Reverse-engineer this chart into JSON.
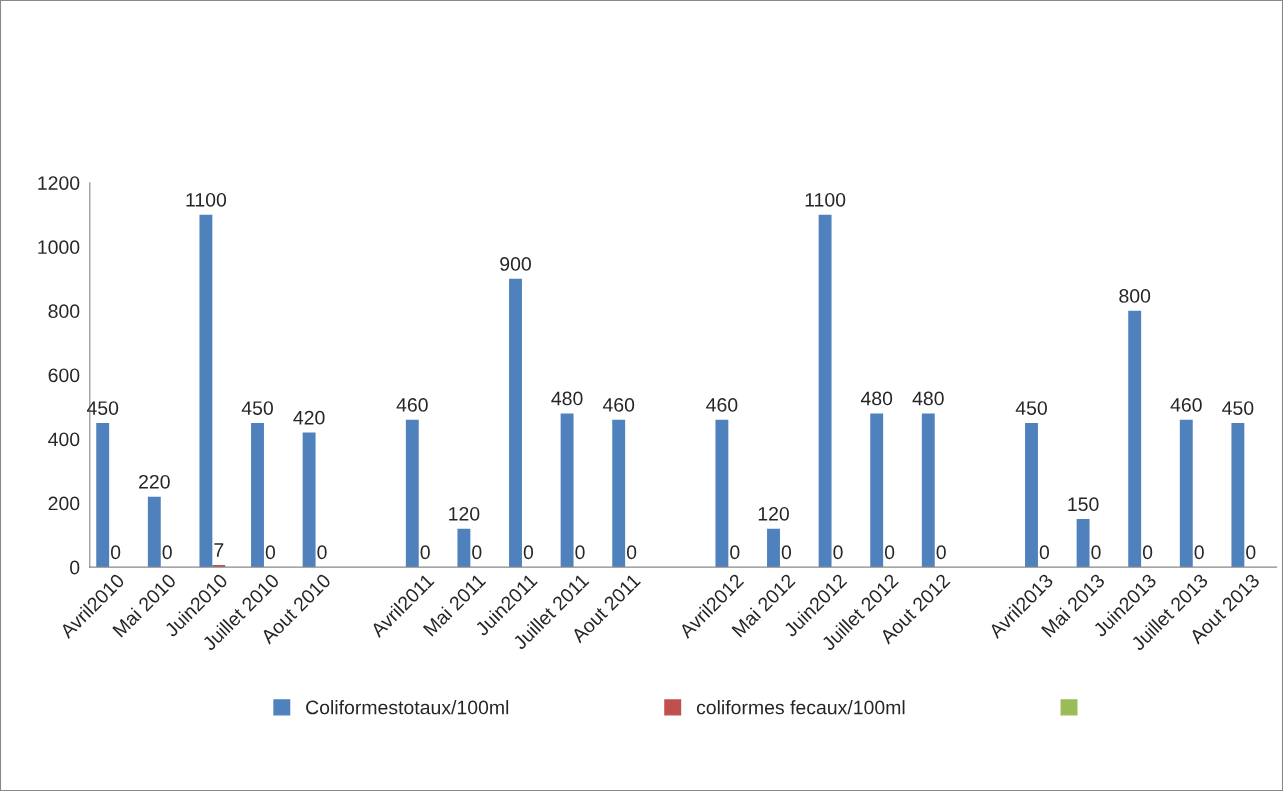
{
  "chart_data": {
    "type": "bar",
    "categories": [
      "Avril2010",
      "Mai 2010",
      "Juin2010",
      "Juillet 2010",
      "Aout 2010",
      null,
      "Avril2011",
      "Mai 2011",
      "Juin2011",
      "Juillet 2011",
      "Aout 2011",
      null,
      "Avril2012",
      "Mai 2012",
      "Juin2012",
      "Juillet 2012",
      "Aout 2012",
      null,
      "Avril2013",
      "Mai 2013",
      "Juin2013",
      "Juillet 2013",
      "Aout 2013"
    ],
    "series": [
      {
        "name": "Coliformestotaux/100ml",
        "color": "#4f81bd",
        "values": [
          450,
          220,
          1100,
          450,
          420,
          null,
          460,
          120,
          900,
          480,
          460,
          null,
          460,
          120,
          1100,
          480,
          480,
          null,
          450,
          150,
          800,
          460,
          450
        ]
      },
      {
        "name": "coliformes fecaux/100ml",
        "color": "#c0504d",
        "values": [
          0,
          0,
          7,
          0,
          0,
          null,
          0,
          0,
          0,
          0,
          0,
          null,
          0,
          0,
          0,
          0,
          0,
          null,
          0,
          0,
          0,
          0,
          0
        ]
      },
      {
        "color": "#9bbb59",
        "values": [
          null,
          null,
          null,
          null,
          null,
          null,
          null,
          null,
          null,
          null,
          null,
          null,
          null,
          null,
          null,
          null,
          null,
          null,
          null,
          null,
          null,
          null,
          null
        ]
      }
    ],
    "ylim": [
      0,
      1200
    ],
    "yticks": [
      0,
      200,
      400,
      600,
      800,
      1000,
      1200
    ],
    "data_labels": true,
    "grid": false,
    "legend": "bottom"
  }
}
